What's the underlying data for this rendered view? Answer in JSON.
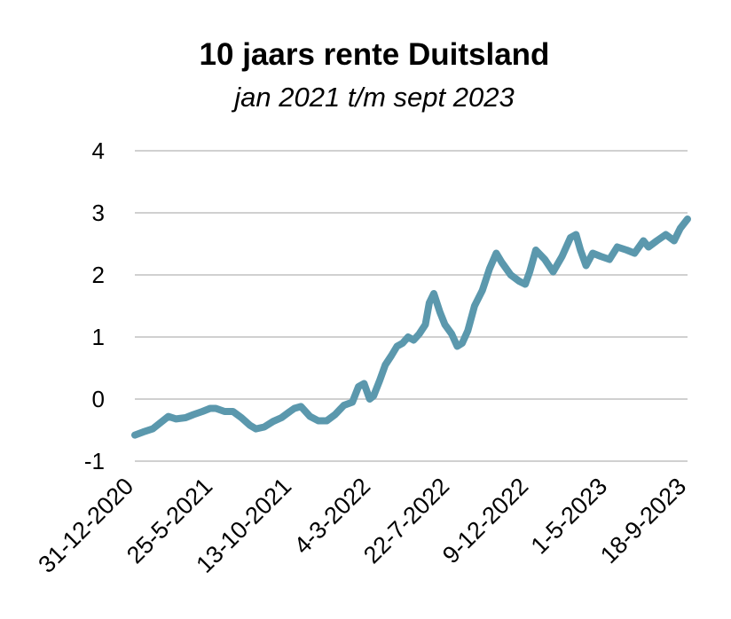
{
  "chart_data": {
    "type": "line",
    "title": "10 jaars rente Duitsland",
    "subtitle": "jan 2021 t/m sept 2023",
    "xlabel": "",
    "ylabel": "",
    "ylim": [
      -1,
      4
    ],
    "yticks": [
      "4",
      "3",
      "2",
      "1",
      "0",
      "-1"
    ],
    "grid": true,
    "legend": "none",
    "line_color": "#5b98ad",
    "x_ticks": [
      "31-12-2020",
      "25-5-2021",
      "13-10-2021",
      "4-3-2022",
      "22-7-2022",
      "9-12-2022",
      "1-5-2023",
      "18-9-2023"
    ],
    "series": [
      {
        "x": [
          "2020-12-31",
          "2021-01-15",
          "2021-02-01",
          "2021-02-15",
          "2021-03-01",
          "2021-03-15",
          "2021-04-01",
          "2021-04-15",
          "2021-05-01",
          "2021-05-15",
          "2021-05-25",
          "2021-06-10",
          "2021-06-25",
          "2021-07-10",
          "2021-07-25",
          "2021-08-05",
          "2021-08-20",
          "2021-09-05",
          "2021-09-20",
          "2021-10-05",
          "2021-10-13",
          "2021-10-25",
          "2021-11-10",
          "2021-11-25",
          "2021-12-10",
          "2021-12-25",
          "2022-01-10",
          "2022-01-25",
          "2022-02-05",
          "2022-02-15",
          "2022-02-25",
          "2022-03-04",
          "2022-03-15",
          "2022-03-25",
          "2022-04-05",
          "2022-04-15",
          "2022-04-25",
          "2022-05-05",
          "2022-05-15",
          "2022-05-25",
          "2022-06-05",
          "2022-06-12",
          "2022-06-20",
          "2022-07-01",
          "2022-07-10",
          "2022-07-22",
          "2022-08-01",
          "2022-08-10",
          "2022-08-20",
          "2022-09-01",
          "2022-09-15",
          "2022-09-28",
          "2022-10-10",
          "2022-10-20",
          "2022-11-05",
          "2022-11-20",
          "2022-12-01",
          "2022-12-09",
          "2022-12-20",
          "2023-01-05",
          "2023-01-20",
          "2023-02-05",
          "2023-02-20",
          "2023-03-02",
          "2023-03-10",
          "2023-03-20",
          "2023-04-01",
          "2023-04-15",
          "2023-05-01",
          "2023-05-15",
          "2023-06-01",
          "2023-06-15",
          "2023-07-01",
          "2023-07-10",
          "2023-07-25",
          "2023-08-10",
          "2023-08-25",
          "2023-09-05",
          "2023-09-18"
        ],
        "y": [
          -0.58,
          -0.53,
          -0.48,
          -0.38,
          -0.28,
          -0.32,
          -0.3,
          -0.25,
          -0.2,
          -0.15,
          -0.15,
          -0.2,
          -0.2,
          -0.3,
          -0.42,
          -0.48,
          -0.45,
          -0.36,
          -0.3,
          -0.2,
          -0.15,
          -0.12,
          -0.28,
          -0.35,
          -0.35,
          -0.25,
          -0.1,
          -0.05,
          0.2,
          0.25,
          0.0,
          0.05,
          0.3,
          0.55,
          0.7,
          0.85,
          0.9,
          1.0,
          0.95,
          1.05,
          1.2,
          1.55,
          1.7,
          1.4,
          1.2,
          1.05,
          0.85,
          0.9,
          1.1,
          1.5,
          1.75,
          2.1,
          2.35,
          2.2,
          2.0,
          1.9,
          1.85,
          2.05,
          2.4,
          2.25,
          2.05,
          2.3,
          2.6,
          2.65,
          2.4,
          2.15,
          2.35,
          2.3,
          2.25,
          2.45,
          2.4,
          2.35,
          2.55,
          2.45,
          2.55,
          2.65,
          2.55,
          2.75,
          2.9
        ]
      }
    ]
  }
}
